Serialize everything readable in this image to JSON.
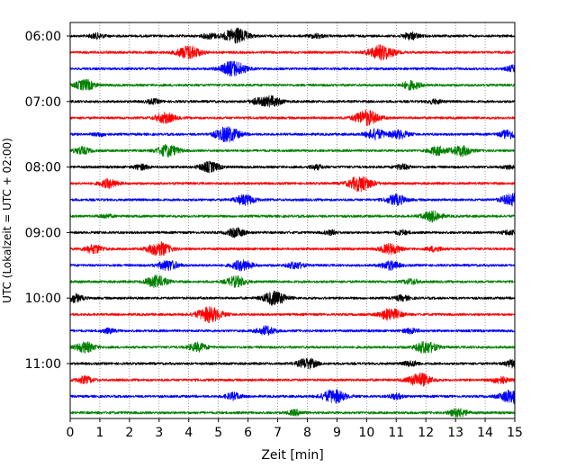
{
  "chart_data": {
    "type": "line",
    "title": "",
    "xlabel": "Zeit  [min]",
    "ylabel": "UTC (Lokalzeit = UTC + 02:00)",
    "xlim": [
      0,
      15
    ],
    "x_ticks": [
      0,
      1,
      2,
      3,
      4,
      5,
      6,
      7,
      8,
      9,
      10,
      11,
      12,
      13,
      14,
      15
    ],
    "y_tick_labels": [
      "06:00",
      "07:00",
      "08:00",
      "09:00",
      "10:00",
      "11:00"
    ],
    "grid": "vertical dotted at each minute",
    "row_minutes": 15,
    "colors": [
      "#000000",
      "#ff0000",
      "#0000ff",
      "#008000"
    ],
    "traces": [
      {
        "start": "06:00",
        "color": "#000000",
        "bursts": [
          [
            5.6,
            0.9
          ],
          [
            0.9,
            0.3
          ],
          [
            4.7,
            0.3
          ],
          [
            11.5,
            0.4
          ],
          [
            8.3,
            0.25
          ]
        ]
      },
      {
        "start": "06:15",
        "color": "#ff0000",
        "bursts": [
          [
            4.0,
            0.8
          ],
          [
            10.5,
            0.9
          ]
        ]
      },
      {
        "start": "06:30",
        "color": "#0000ff",
        "bursts": [
          [
            5.5,
            0.9
          ],
          [
            15.0,
            0.4
          ]
        ]
      },
      {
        "start": "06:45",
        "color": "#008000",
        "bursts": [
          [
            0.5,
            0.6
          ],
          [
            11.5,
            0.5
          ]
        ]
      },
      {
        "start": "07:00",
        "color": "#000000",
        "bursts": [
          [
            6.8,
            0.6
          ],
          [
            6.3,
            0.3
          ],
          [
            2.8,
            0.25
          ],
          [
            12.3,
            0.25
          ]
        ]
      },
      {
        "start": "07:15",
        "color": "#ff0000",
        "bursts": [
          [
            3.2,
            0.6
          ],
          [
            10.0,
            0.9
          ]
        ]
      },
      {
        "start": "07:30",
        "color": "#0000ff",
        "bursts": [
          [
            5.3,
            0.9
          ],
          [
            10.3,
            0.6
          ],
          [
            11.1,
            0.5
          ],
          [
            1.0,
            0.2
          ],
          [
            14.7,
            0.3
          ],
          [
            14.9,
            0.3
          ]
        ]
      },
      {
        "start": "07:45",
        "color": "#008000",
        "bursts": [
          [
            0.4,
            0.4
          ],
          [
            3.3,
            0.7
          ],
          [
            12.4,
            0.5
          ],
          [
            13.2,
            0.6
          ]
        ]
      },
      {
        "start": "08:00",
        "color": "#000000",
        "bursts": [
          [
            4.7,
            0.6
          ],
          [
            2.4,
            0.3
          ],
          [
            8.3,
            0.25
          ],
          [
            11.2,
            0.3
          ],
          [
            14.8,
            0.2
          ]
        ]
      },
      {
        "start": "08:15",
        "color": "#ff0000",
        "bursts": [
          [
            1.3,
            0.5
          ],
          [
            9.8,
            0.9
          ]
        ]
      },
      {
        "start": "08:30",
        "color": "#0000ff",
        "bursts": [
          [
            5.9,
            0.6
          ],
          [
            11.0,
            0.6
          ],
          [
            14.9,
            0.7
          ]
        ]
      },
      {
        "start": "08:45",
        "color": "#008000",
        "bursts": [
          [
            12.2,
            0.6
          ],
          [
            1.2,
            0.2
          ]
        ]
      },
      {
        "start": "09:00",
        "color": "#000000",
        "bursts": [
          [
            5.6,
            0.5
          ],
          [
            8.8,
            0.25
          ],
          [
            11.2,
            0.25
          ],
          [
            14.8,
            0.25
          ]
        ]
      },
      {
        "start": "09:15",
        "color": "#ff0000",
        "bursts": [
          [
            0.8,
            0.5
          ],
          [
            3.0,
            0.8
          ],
          [
            10.8,
            0.6
          ],
          [
            12.3,
            0.3
          ]
        ]
      },
      {
        "start": "09:30",
        "color": "#0000ff",
        "bursts": [
          [
            3.3,
            0.6
          ],
          [
            5.8,
            0.6
          ],
          [
            7.6,
            0.4
          ],
          [
            10.8,
            0.5
          ]
        ]
      },
      {
        "start": "09:45",
        "color": "#008000",
        "bursts": [
          [
            2.9,
            0.7
          ],
          [
            5.6,
            0.6
          ],
          [
            11.5,
            0.3
          ]
        ]
      },
      {
        "start": "10:00",
        "color": "#000000",
        "bursts": [
          [
            6.9,
            0.8
          ],
          [
            0.1,
            0.5
          ],
          [
            11.2,
            0.3
          ]
        ]
      },
      {
        "start": "10:15",
        "color": "#ff0000",
        "bursts": [
          [
            4.7,
            0.9
          ],
          [
            10.8,
            0.7
          ]
        ]
      },
      {
        "start": "10:30",
        "color": "#0000ff",
        "bursts": [
          [
            6.6,
            0.5
          ],
          [
            1.3,
            0.25
          ],
          [
            11.5,
            0.3
          ]
        ]
      },
      {
        "start": "10:45",
        "color": "#008000",
        "bursts": [
          [
            0.5,
            0.6
          ],
          [
            4.3,
            0.5
          ],
          [
            12.0,
            0.7
          ]
        ]
      },
      {
        "start": "11:00",
        "color": "#000000",
        "bursts": [
          [
            8.0,
            0.6
          ],
          [
            15.0,
            0.5
          ],
          [
            11.5,
            0.3
          ]
        ]
      },
      {
        "start": "11:15",
        "color": "#ff0000",
        "bursts": [
          [
            0.5,
            0.4
          ],
          [
            11.8,
            0.8
          ],
          [
            14.5,
            0.4
          ]
        ]
      },
      {
        "start": "11:30",
        "color": "#0000ff",
        "bursts": [
          [
            8.9,
            0.8
          ],
          [
            14.9,
            0.8
          ],
          [
            5.5,
            0.4
          ],
          [
            11.0,
            0.3
          ]
        ]
      },
      {
        "start": "11:45",
        "color": "#008000",
        "bursts": [
          [
            13.1,
            0.5
          ],
          [
            7.6,
            0.3
          ]
        ]
      }
    ]
  }
}
